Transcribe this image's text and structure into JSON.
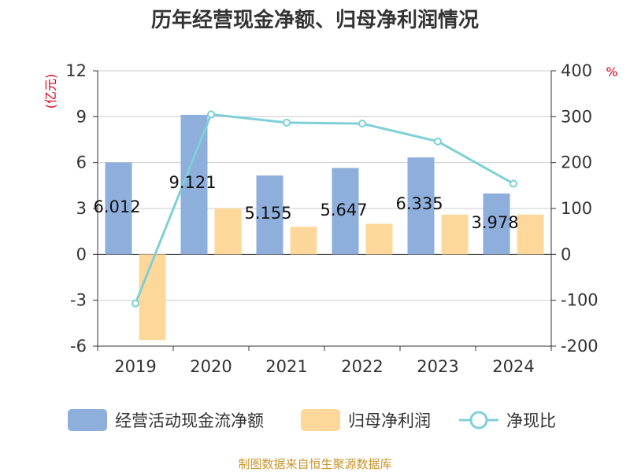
{
  "chart_data": {
    "type": "bar",
    "title": "历年经营现金净额、归母净利润情况",
    "categories": [
      "2019",
      "2020",
      "2021",
      "2022",
      "2023",
      "2024"
    ],
    "y_left": {
      "unit": "(亿元)",
      "ticks": [
        "12",
        "9",
        "6",
        "3",
        "0",
        "-3",
        "-6"
      ],
      "ylim": [
        -6,
        12
      ]
    },
    "y_right": {
      "unit": "%",
      "ticks": [
        "400",
        "300",
        "200",
        "100",
        "0",
        "-100",
        "-200"
      ],
      "ylim": [
        -200,
        400
      ]
    },
    "grid": true,
    "legend_position": "bottom",
    "series": [
      {
        "name": "经营活动现金流净额",
        "type": "bar",
        "axis": "left",
        "color": "#8eaedb",
        "values": [
          6.012,
          9.121,
          5.155,
          5.647,
          6.335,
          3.978
        ],
        "labels": [
          "6.012",
          "9.121",
          "5.155",
          "5.647",
          "6.335",
          "3.978"
        ]
      },
      {
        "name": "归母净利润",
        "type": "bar",
        "axis": "left",
        "color": "#fdd89a",
        "values": [
          -5.6,
          3.0,
          1.8,
          2.0,
          2.6,
          2.6
        ]
      },
      {
        "name": "净现比",
        "type": "line",
        "axis": "right",
        "color": "#7fd0d6",
        "values": [
          -107,
          305,
          287,
          285,
          246,
          154
        ]
      }
    ]
  },
  "source": "制图数据来自恒生聚源数据库"
}
